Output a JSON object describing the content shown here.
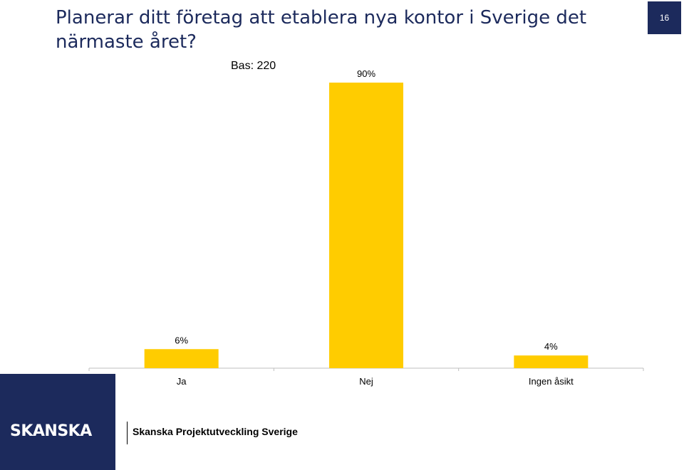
{
  "slide": {
    "title": "Planerar ditt företag att etablera nya kontor i Sverige det närmaste året?",
    "page_number": "16",
    "base_label": "Bas: 220"
  },
  "footer": {
    "logo": "SKANSKA",
    "text": "Skanska Projektutveckling Sverige"
  },
  "colors": {
    "brand": "#1c2a5c",
    "bar": "#ffcc00"
  },
  "chart_data": {
    "type": "bar",
    "categories": [
      "Ja",
      "Nej",
      "Ingen åsikt"
    ],
    "values": [
      6,
      90,
      4
    ],
    "data_labels": [
      "6%",
      "90%",
      "4%"
    ],
    "ylim": [
      0,
      90
    ],
    "grid": false,
    "legend": "none"
  }
}
